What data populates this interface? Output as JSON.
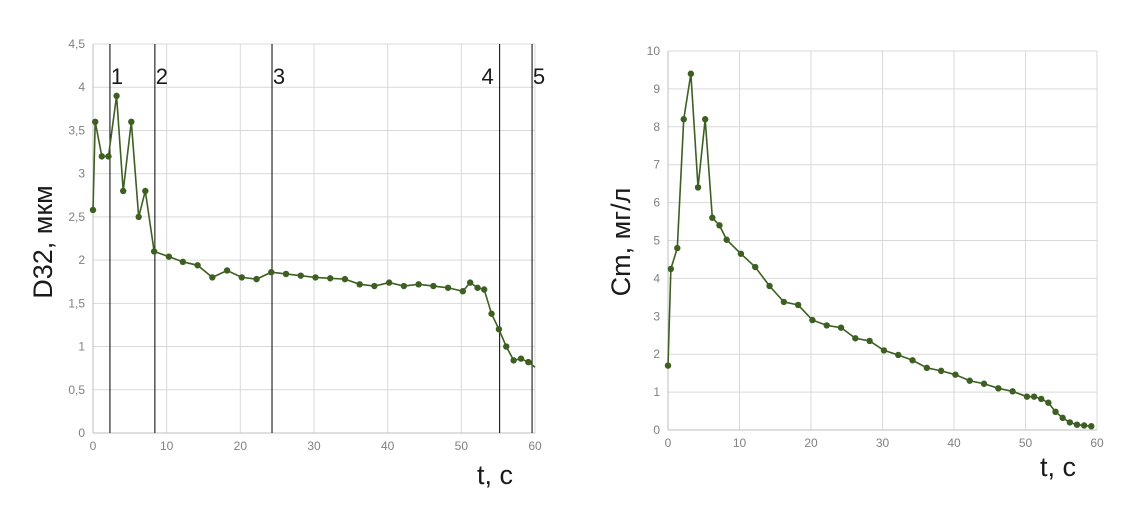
{
  "colors": {
    "series": "#3d5f22",
    "grid": "#d9d9d9",
    "axis": "#bfbfbf",
    "marker_line": "#000000",
    "tick_text": "#808080"
  },
  "chart_data": [
    {
      "type": "line",
      "title": "",
      "xlabel": "t, c",
      "ylabel": "D32, мкм",
      "xlim": [
        0,
        60
      ],
      "ylim": [
        0,
        4.5
      ],
      "grid": true,
      "legend": "none",
      "x_ticks": [
        "0",
        "10",
        "20",
        "30",
        "40",
        "50",
        "60"
      ],
      "y_ticks": [
        "0",
        "0,5",
        "1",
        "1,5",
        "2",
        "2,5",
        "3",
        "3,5",
        "4",
        "4,5"
      ],
      "vertical_markers": [
        {
          "label": "1",
          "x": 2.3
        },
        {
          "label": "2",
          "x": 8.4
        },
        {
          "label": "3",
          "x": 24.3
        },
        {
          "label": "4",
          "x": 55.2
        },
        {
          "label": "5",
          "x": 59.6
        }
      ],
      "series": [
        {
          "x": [
            0,
            0.3,
            1.2,
            2.1,
            3.2,
            4.1,
            5.2,
            6.2,
            7.1,
            8.3,
            10.3,
            12.2,
            14.2,
            16.2,
            18.2,
            20.2,
            22.2,
            24.2,
            26.2,
            28.2,
            30.2,
            32.2,
            34.2,
            36.2,
            38.2,
            40.2,
            42.2,
            44.2,
            46.2,
            48.2,
            50.2,
            51.2,
            52.2,
            53.1,
            54.1,
            55.1,
            56.1,
            57.1,
            58.1,
            59.1,
            60
          ],
          "y": [
            2.58,
            3.6,
            3.2,
            3.2,
            3.9,
            2.8,
            3.6,
            2.5,
            2.8,
            2.1,
            2.04,
            1.98,
            1.94,
            1.8,
            1.88,
            1.8,
            1.78,
            1.86,
            1.84,
            1.82,
            1.8,
            1.79,
            1.78,
            1.72,
            1.7,
            1.74,
            1.7,
            1.72,
            1.7,
            1.68,
            1.64,
            1.74,
            1.68,
            1.66,
            1.38,
            1.2,
            1.0,
            0.84,
            0.86,
            0.82,
            0.76
          ]
        }
      ]
    },
    {
      "type": "line",
      "title": "",
      "xlabel": "t, c",
      "ylabel": "Cm, мг/л",
      "xlim": [
        0,
        60
      ],
      "ylim": [
        0,
        10
      ],
      "grid": true,
      "legend": "none",
      "x_ticks": [
        "0",
        "10",
        "20",
        "30",
        "40",
        "50",
        "60"
      ],
      "y_ticks": [
        "0",
        "1",
        "2",
        "3",
        "4",
        "5",
        "6",
        "7",
        "8",
        "9",
        "10"
      ],
      "series": [
        {
          "x": [
            0,
            0.4,
            1.3,
            2.2,
            3.2,
            4.2,
            5.2,
            6.2,
            7.2,
            8.2,
            10.2,
            12.2,
            14.2,
            16.2,
            18.2,
            20.2,
            22.2,
            24.2,
            26.2,
            28.2,
            30.2,
            32.2,
            34.2,
            36.2,
            38.2,
            40.2,
            42.2,
            44.2,
            46.2,
            48.2,
            50.2,
            51.2,
            52.2,
            53.2,
            54.2,
            55.2,
            56.2,
            57.2,
            58.2,
            59.2
          ],
          "y": [
            1.7,
            4.25,
            4.8,
            8.2,
            9.4,
            6.4,
            8.2,
            5.6,
            5.4,
            5.02,
            4.65,
            4.3,
            3.8,
            3.38,
            3.3,
            2.9,
            2.76,
            2.7,
            2.42,
            2.35,
            2.1,
            1.98,
            1.84,
            1.64,
            1.56,
            1.46,
            1.3,
            1.22,
            1.1,
            1.02,
            0.88,
            0.88,
            0.82,
            0.72,
            0.48,
            0.32,
            0.2,
            0.14,
            0.12,
            0.1
          ]
        }
      ]
    }
  ]
}
